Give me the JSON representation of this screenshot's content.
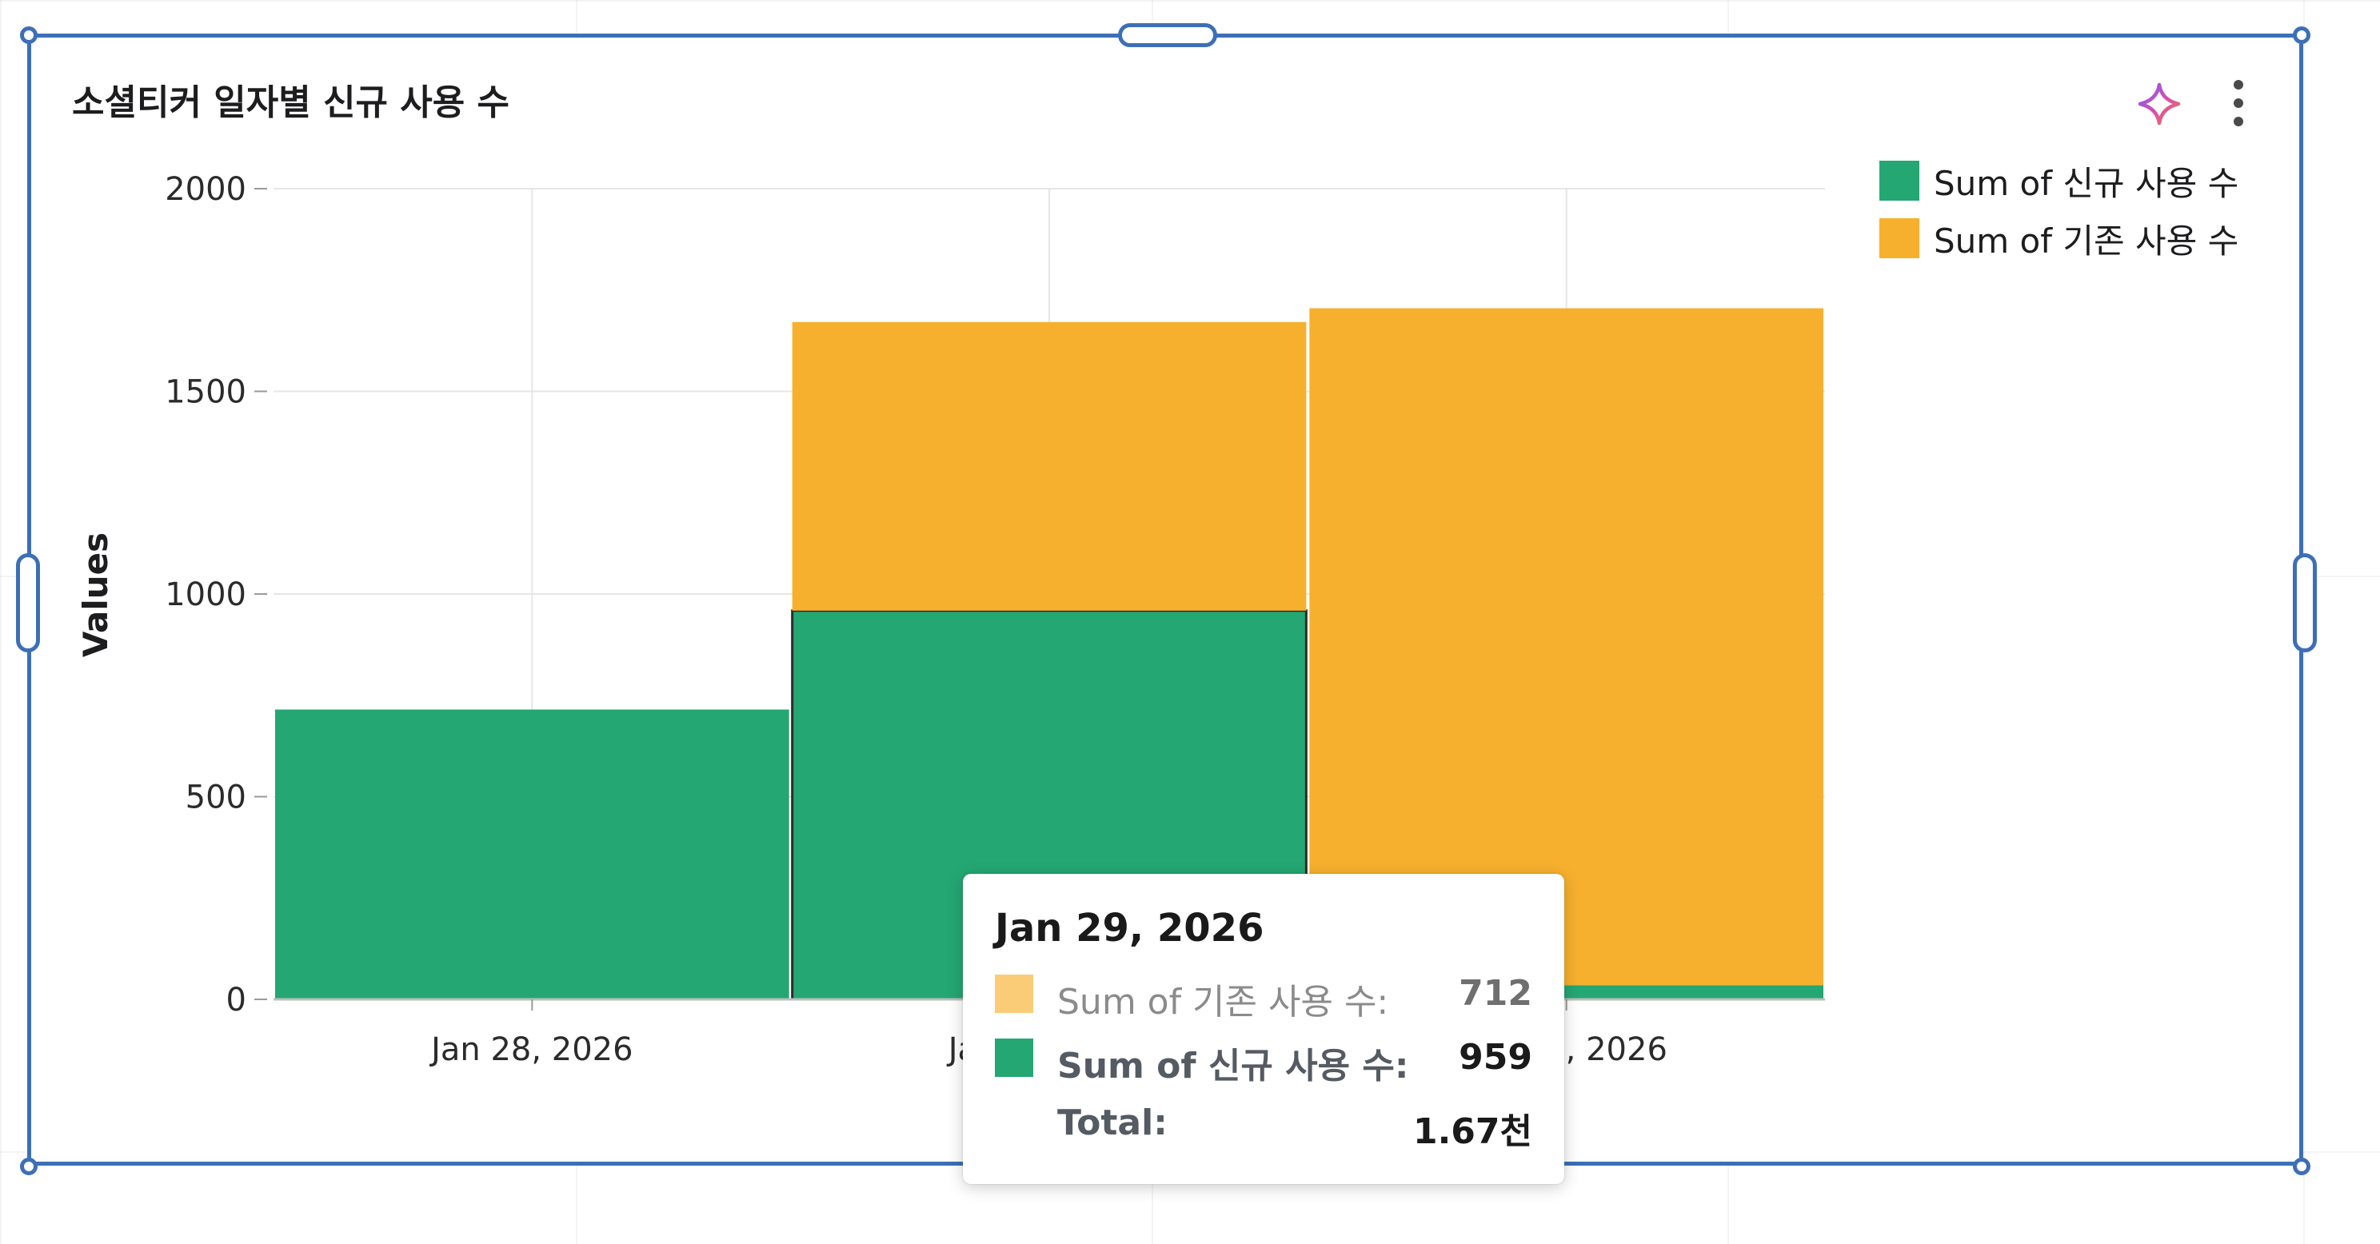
{
  "widget": {
    "title": "소셜티커 일자별 신규 사용 수"
  },
  "colors": {
    "series_new": "#24a773",
    "series_existing": "#f7b02e",
    "selection_border": "#3d6fb6",
    "gridline": "#e6e6e6"
  },
  "icons": {
    "ai": "sparkle-icon",
    "more": "more-vertical-icon"
  },
  "chart_data": {
    "type": "bar",
    "stacked": true,
    "categories": [
      "Jan 28, 2026",
      "Jan 29, 2026",
      "Jan 30, 2026"
    ],
    "series": [
      {
        "name": "Sum of 신규 사용 수",
        "values": [
          715,
          959,
          35
        ]
      },
      {
        "name": "Sum of 기존 사용 수",
        "values": [
          0,
          712,
          1670
        ]
      }
    ],
    "ylabel": "Values",
    "xlabel": "",
    "ylim": [
      0,
      2000
    ],
    "yticks": [
      0,
      500,
      1000,
      1500,
      2000
    ],
    "grid": true,
    "legend_position": "top-right",
    "highlighted_category": "Jan 29, 2026"
  },
  "legend": {
    "items": [
      {
        "label": "Sum of 신규 사용 수"
      },
      {
        "label": "Sum of 기존 사용 수"
      }
    ]
  },
  "tooltip": {
    "date": "Jan 29, 2026",
    "rows": [
      {
        "label": "Sum of 기존 사용 수:",
        "value": "712"
      },
      {
        "label": "Sum of 신규 사용 수:",
        "value": "959"
      },
      {
        "label": "Total:",
        "value": "1.67천"
      }
    ]
  }
}
